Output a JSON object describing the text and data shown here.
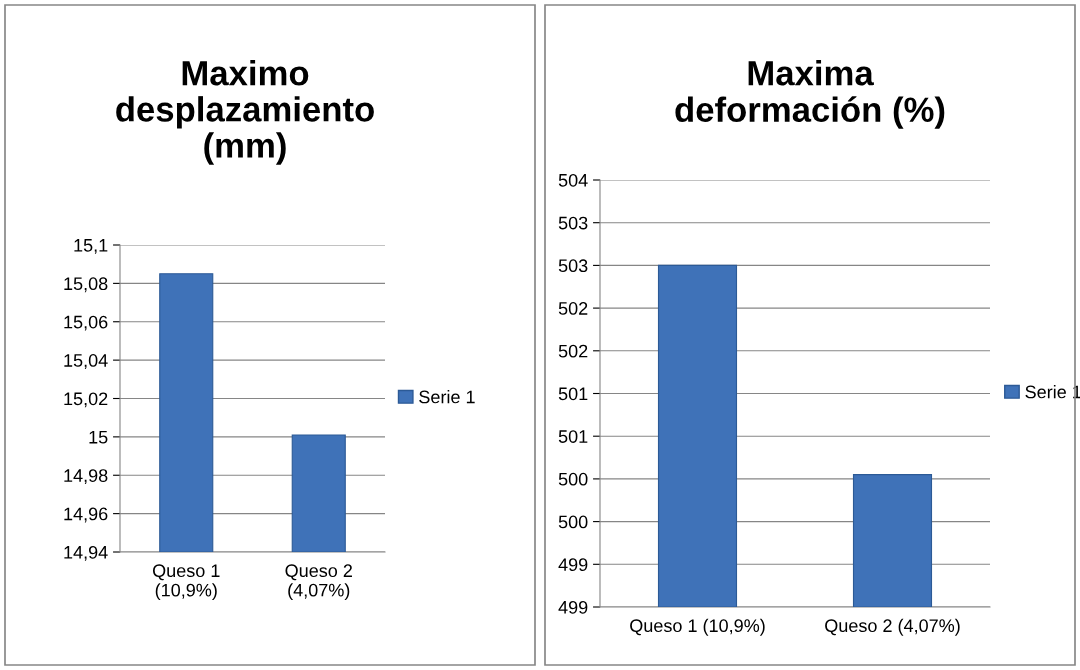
{
  "chart_data": [
    {
      "type": "bar",
      "title": "Maximo\ndesplazamiento\n(mm)",
      "categories": [
        "Queso 1\n(10,9%)",
        "Queso 2\n(4,07%)"
      ],
      "series": [
        {
          "name": "Serie 1",
          "color": "#3f72b8",
          "values": [
            15.085,
            15.001
          ]
        }
      ],
      "ylim": [
        14.94,
        15.1
      ],
      "yticks": [
        {
          "value": 14.94,
          "label": "14,94"
        },
        {
          "value": 14.96,
          "label": "14,96"
        },
        {
          "value": 14.98,
          "label": "14,98"
        },
        15,
        {
          "value": 15.02,
          "label": "15,02"
        },
        {
          "value": 15.04,
          "label": "15,04"
        },
        {
          "value": 15.06,
          "label": "15,06"
        },
        {
          "value": 15.08,
          "label": "15,08"
        },
        {
          "value": 15.1,
          "label": "15,1"
        }
      ],
      "grid": "y",
      "legend": "right"
    },
    {
      "type": "bar",
      "title": "Maxima\ndeformación (%)",
      "categories": [
        "Queso 1 (10,9%)",
        "Queso 2 (4,07%)"
      ],
      "series": [
        {
          "name": "Serie 1",
          "color": "#3f72b8",
          "values": [
            503.0,
            500.55
          ]
        }
      ],
      "ylim": [
        499,
        504
      ],
      "yticks": [
        499,
        {
          "value": 499.5,
          "label": "499"
        },
        500,
        {
          "value": 500.5,
          "label": "500"
        },
        501,
        {
          "value": 501.5,
          "label": "501"
        },
        502,
        {
          "value": 502.5,
          "label": "502"
        },
        503,
        {
          "value": 503.5,
          "label": "503"
        },
        504
      ],
      "grid": "y",
      "legend": "right"
    }
  ]
}
